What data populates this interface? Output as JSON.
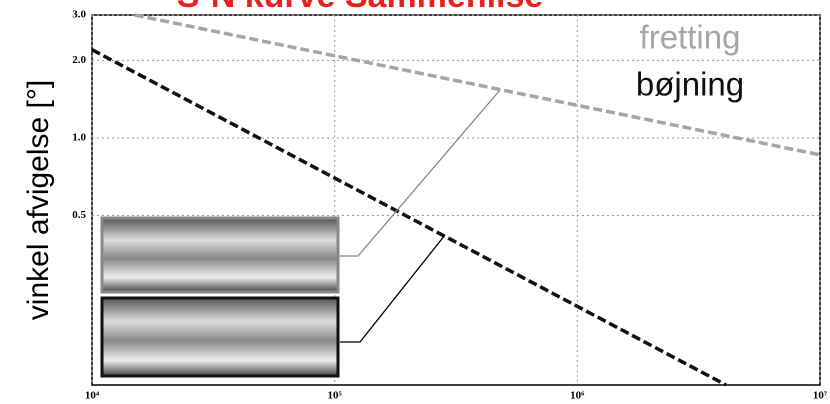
{
  "chart_data": {
    "type": "line",
    "title": "S-N kurve Sammenlise",
    "y_label": "vinkel afvigelse [°]",
    "xscale": "log",
    "yscale": "log",
    "grid": true,
    "xlim": [
      10000,
      10000000
    ],
    "ylim": [
      0.11,
      3.0
    ],
    "xticks": [
      {
        "value": 10000,
        "label": "10⁴"
      },
      {
        "value": 100000,
        "label": "10⁵"
      },
      {
        "value": 1000000,
        "label": "10⁶"
      },
      {
        "value": 10000000,
        "label": "10⁷"
      }
    ],
    "yticks": [
      0.5,
      {
        "value": 1,
        "label": "1.0"
      },
      {
        "value": 2,
        "label": "2.0"
      },
      {
        "value": 3,
        "label": "3.0"
      }
    ],
    "series": [
      {
        "name": "fretting",
        "color": "#a6a6a6",
        "x": [
          15000,
          10000000
        ],
        "values": [
          3.0,
          0.86
        ]
      },
      {
        "name": "bøjning",
        "color": "#111111",
        "x": [
          10000,
          4100000
        ],
        "values": [
          2.2,
          0.11
        ]
      }
    ]
  }
}
